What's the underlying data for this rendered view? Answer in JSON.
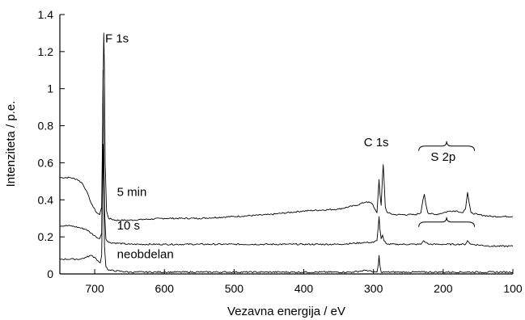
{
  "chart_data": {
    "type": "line",
    "title": "",
    "xlabel": "Vezavna energija / eV",
    "ylabel": "Intenziteta / p.e.",
    "xlim": [
      750,
      100
    ],
    "x_reversed": true,
    "ylim": [
      0,
      1.4
    ],
    "xticks": [
      700,
      600,
      500,
      400,
      300,
      200,
      100
    ],
    "yticks": [
      0,
      0.2,
      0.4,
      0.6,
      0.8,
      1,
      1.2,
      1.4
    ],
    "grid": false,
    "legend": "none",
    "series": [
      {
        "name": "5 min",
        "points": [
          [
            750,
            0.52
          ],
          [
            735,
            0.52
          ],
          [
            725,
            0.51
          ],
          [
            718,
            0.49
          ],
          [
            712,
            0.45
          ],
          [
            707,
            0.4
          ],
          [
            702,
            0.36
          ],
          [
            697,
            0.33
          ],
          [
            693,
            0.32
          ],
          [
            690,
            0.36
          ],
          [
            688,
            1.0
          ],
          [
            687,
            1.3
          ],
          [
            686,
            1.1
          ],
          [
            685,
            0.6
          ],
          [
            683,
            0.34
          ],
          [
            680,
            0.3
          ],
          [
            670,
            0.29
          ],
          [
            650,
            0.29
          ],
          [
            600,
            0.3
          ],
          [
            550,
            0.3
          ],
          [
            500,
            0.31
          ],
          [
            450,
            0.32
          ],
          [
            400,
            0.34
          ],
          [
            350,
            0.35
          ],
          [
            325,
            0.37
          ],
          [
            310,
            0.39
          ],
          [
            302,
            0.38
          ],
          [
            298,
            0.35
          ],
          [
            295,
            0.33
          ],
          [
            293,
            0.45
          ],
          [
            292,
            0.51
          ],
          [
            291,
            0.44
          ],
          [
            289,
            0.37
          ],
          [
            287,
            0.53
          ],
          [
            286,
            0.59
          ],
          [
            285,
            0.52
          ],
          [
            283,
            0.36
          ],
          [
            280,
            0.33
          ],
          [
            270,
            0.32
          ],
          [
            255,
            0.32
          ],
          [
            240,
            0.32
          ],
          [
            232,
            0.33
          ],
          [
            229,
            0.4
          ],
          [
            227,
            0.43
          ],
          [
            225,
            0.38
          ],
          [
            222,
            0.33
          ],
          [
            212,
            0.32
          ],
          [
            200,
            0.33
          ],
          [
            190,
            0.34
          ],
          [
            180,
            0.34
          ],
          [
            172,
            0.33
          ],
          [
            168,
            0.35
          ],
          [
            166,
            0.41
          ],
          [
            165,
            0.44
          ],
          [
            163,
            0.39
          ],
          [
            160,
            0.33
          ],
          [
            150,
            0.32
          ],
          [
            130,
            0.31
          ],
          [
            100,
            0.31
          ]
        ]
      },
      {
        "name": "10 s",
        "points": [
          [
            750,
            0.26
          ],
          [
            735,
            0.26
          ],
          [
            722,
            0.25
          ],
          [
            712,
            0.24
          ],
          [
            705,
            0.22
          ],
          [
            698,
            0.2
          ],
          [
            693,
            0.19
          ],
          [
            690,
            0.22
          ],
          [
            689,
            0.6
          ],
          [
            688,
            1.1
          ],
          [
            687,
            0.7
          ],
          [
            686,
            0.35
          ],
          [
            684,
            0.19
          ],
          [
            680,
            0.17
          ],
          [
            650,
            0.16
          ],
          [
            600,
            0.16
          ],
          [
            550,
            0.16
          ],
          [
            500,
            0.16
          ],
          [
            450,
            0.16
          ],
          [
            400,
            0.16
          ],
          [
            350,
            0.16
          ],
          [
            310,
            0.17
          ],
          [
            300,
            0.17
          ],
          [
            295,
            0.18
          ],
          [
            293,
            0.26
          ],
          [
            292,
            0.31
          ],
          [
            291,
            0.25
          ],
          [
            289,
            0.19
          ],
          [
            287,
            0.21
          ],
          [
            285,
            0.18
          ],
          [
            280,
            0.16
          ],
          [
            260,
            0.16
          ],
          [
            240,
            0.16
          ],
          [
            232,
            0.16
          ],
          [
            228,
            0.18
          ],
          [
            225,
            0.17
          ],
          [
            220,
            0.16
          ],
          [
            200,
            0.16
          ],
          [
            180,
            0.16
          ],
          [
            168,
            0.16
          ],
          [
            165,
            0.18
          ],
          [
            163,
            0.17
          ],
          [
            160,
            0.16
          ],
          [
            130,
            0.15
          ],
          [
            100,
            0.15
          ]
        ]
      },
      {
        "name": "neobdelan",
        "points": [
          [
            750,
            0.08
          ],
          [
            730,
            0.08
          ],
          [
            720,
            0.08
          ],
          [
            712,
            0.09
          ],
          [
            706,
            0.1
          ],
          [
            700,
            0.09
          ],
          [
            695,
            0.07
          ],
          [
            692,
            0.06
          ],
          [
            690,
            0.1
          ],
          [
            689,
            0.4
          ],
          [
            688,
            0.7
          ],
          [
            687,
            0.45
          ],
          [
            686,
            0.15
          ],
          [
            684,
            0.04
          ],
          [
            680,
            0.02
          ],
          [
            650,
            0.01
          ],
          [
            600,
            0.01
          ],
          [
            500,
            0.01
          ],
          [
            400,
            0.01
          ],
          [
            330,
            0.01
          ],
          [
            310,
            0.02
          ],
          [
            300,
            0.01
          ],
          [
            295,
            0.01
          ],
          [
            293,
            0.05
          ],
          [
            292,
            0.1
          ],
          [
            291,
            0.05
          ],
          [
            289,
            0.01
          ],
          [
            280,
            0.01
          ],
          [
            250,
            0.01
          ],
          [
            200,
            0.01
          ],
          [
            150,
            0.01
          ],
          [
            100,
            0.01
          ]
        ]
      }
    ],
    "annotations": [
      {
        "id": "f1s",
        "text": "F 1s",
        "x": 685,
        "y": 1.25
      },
      {
        "id": "c1s",
        "text": "C 1s",
        "x": 296,
        "y": 0.69
      },
      {
        "id": "s2p",
        "text": "S 2p",
        "x": 200,
        "y": 0.61
      },
      {
        "id": "lbl5min",
        "text": "5 min",
        "x": 668,
        "y": 0.42
      },
      {
        "id": "lbl10s",
        "text": "10 s",
        "x": 668,
        "y": 0.24
      },
      {
        "id": "lblneo",
        "text": "neobdelan",
        "x": 668,
        "y": 0.085
      }
    ],
    "brackets": [
      {
        "x1": 235,
        "x2": 155,
        "y": 0.69
      },
      {
        "x1": 235,
        "x2": 155,
        "y": 0.28
      }
    ]
  }
}
